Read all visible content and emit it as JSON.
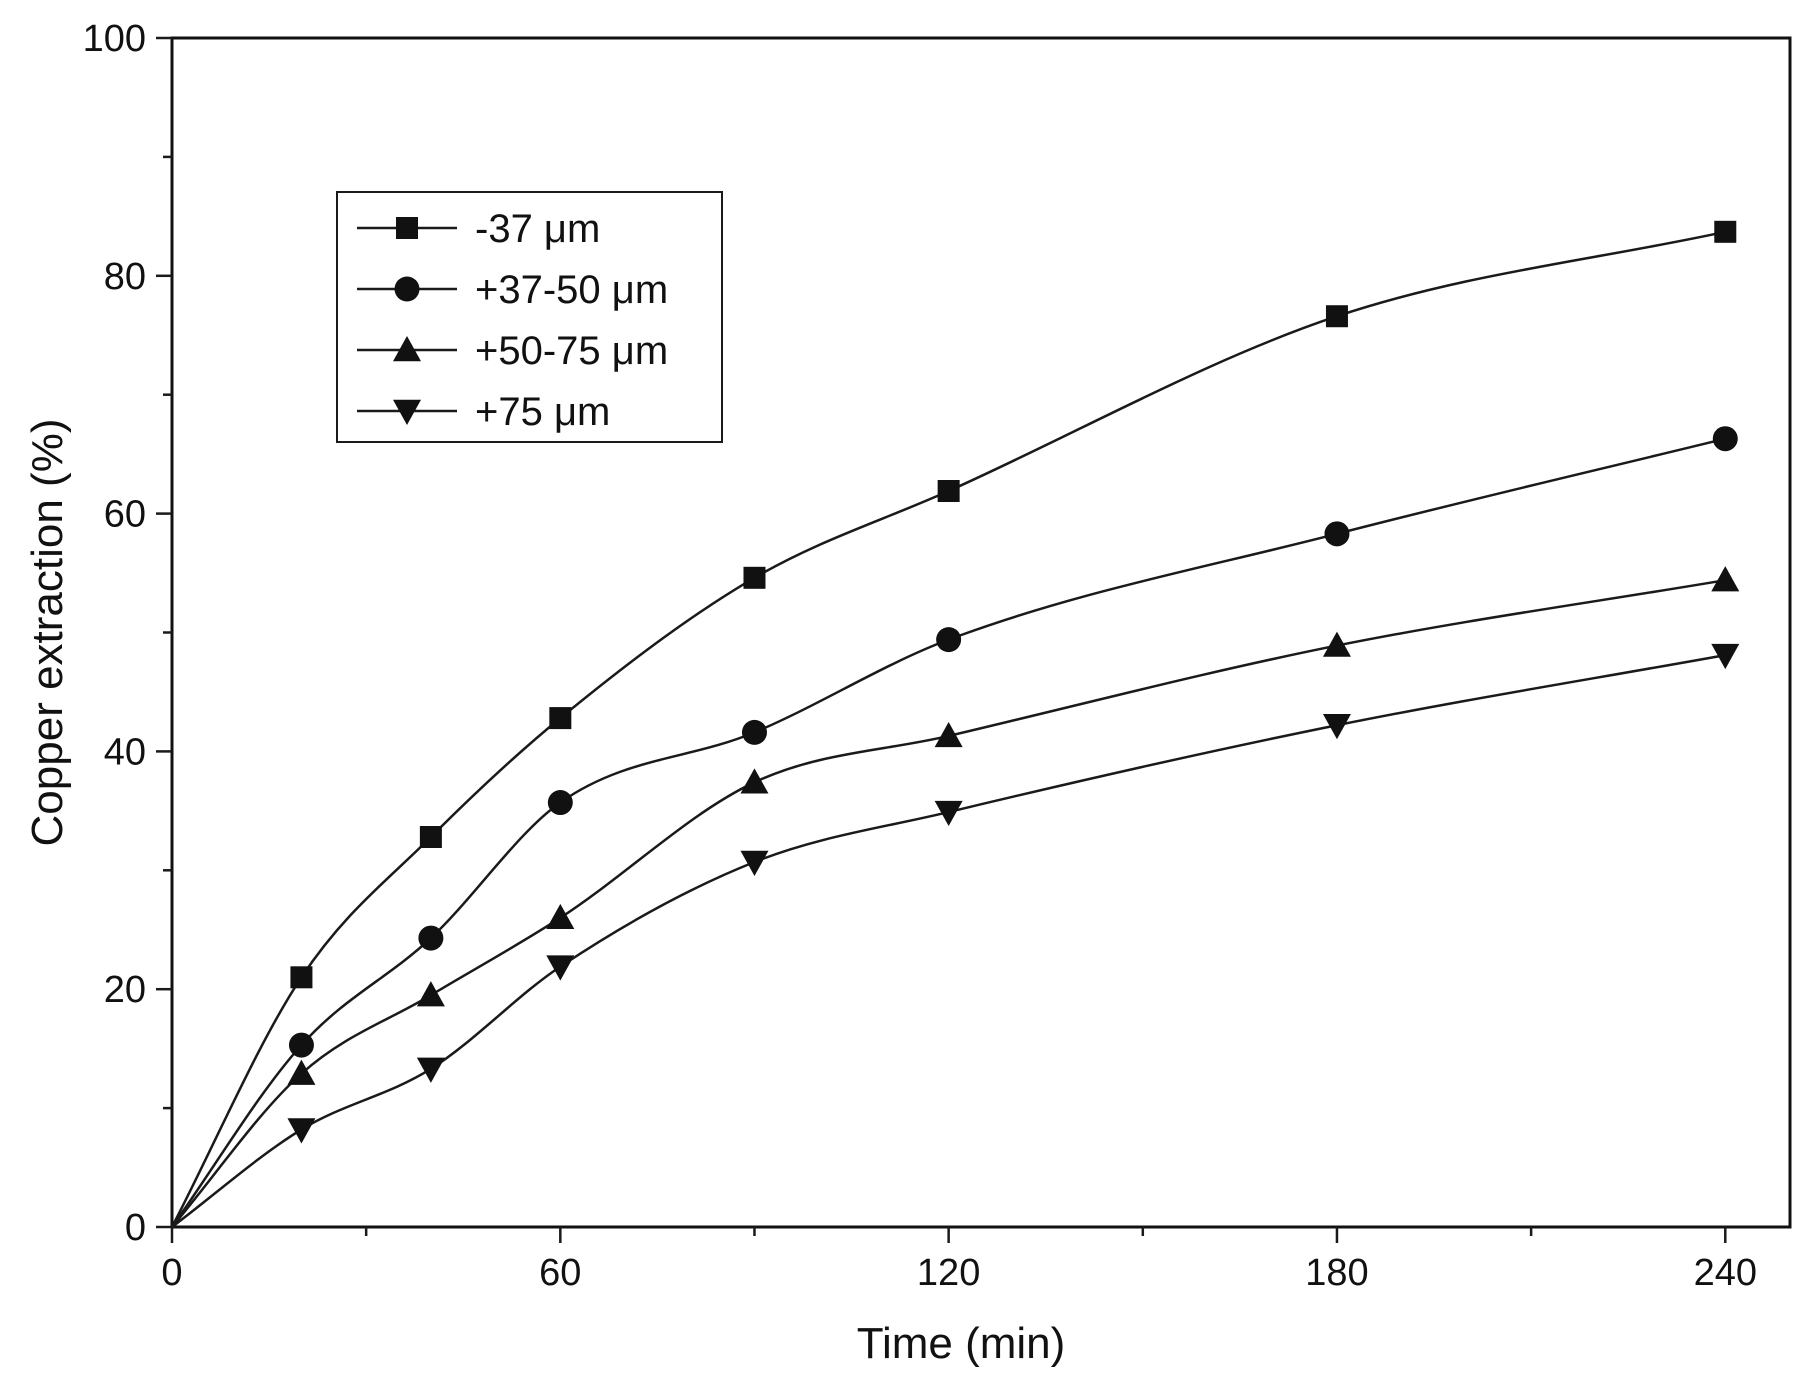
{
  "chart_data": {
    "type": "line",
    "title": "",
    "xlabel": "Time (min)",
    "ylabel": "Copper extraction (%)",
    "xlim": [
      0,
      250
    ],
    "ylim": [
      0,
      100
    ],
    "x_ticks": [
      0,
      60,
      120,
      180,
      240
    ],
    "y_ticks": [
      0,
      20,
      40,
      60,
      80,
      100
    ],
    "x_tick_labels": [
      "0",
      "60",
      "120",
      "180",
      "240"
    ],
    "y_tick_labels": [
      "0",
      "20",
      "40",
      "60",
      "80",
      "100"
    ],
    "grid": false,
    "legend_position": "top-left",
    "x": [
      0,
      20,
      40,
      60,
      90,
      120,
      180,
      240
    ],
    "series": [
      {
        "name": "-37 μm",
        "marker": "square",
        "values": [
          0,
          21,
          32.8,
          42.8,
          54.6,
          61.9,
          76.6,
          83.7
        ]
      },
      {
        "name": "+37-50 μm",
        "marker": "circle",
        "values": [
          0,
          15.3,
          24.3,
          35.7,
          41.6,
          49.4,
          58.3,
          66.3
        ]
      },
      {
        "name": "+50-75 μm",
        "marker": "triangle-up",
        "values": [
          0,
          12.9,
          19.5,
          26.0,
          37.4,
          41.3,
          48.9,
          54.4
        ]
      },
      {
        "name": "+75 μm",
        "marker": "triangle-down",
        "values": [
          0,
          8.2,
          13.3,
          21.9,
          30.7,
          34.9,
          42.2,
          48.1
        ]
      }
    ],
    "colors": {
      "line": "#1a1a1a",
      "marker": "#111111",
      "axis": "#111111"
    }
  }
}
